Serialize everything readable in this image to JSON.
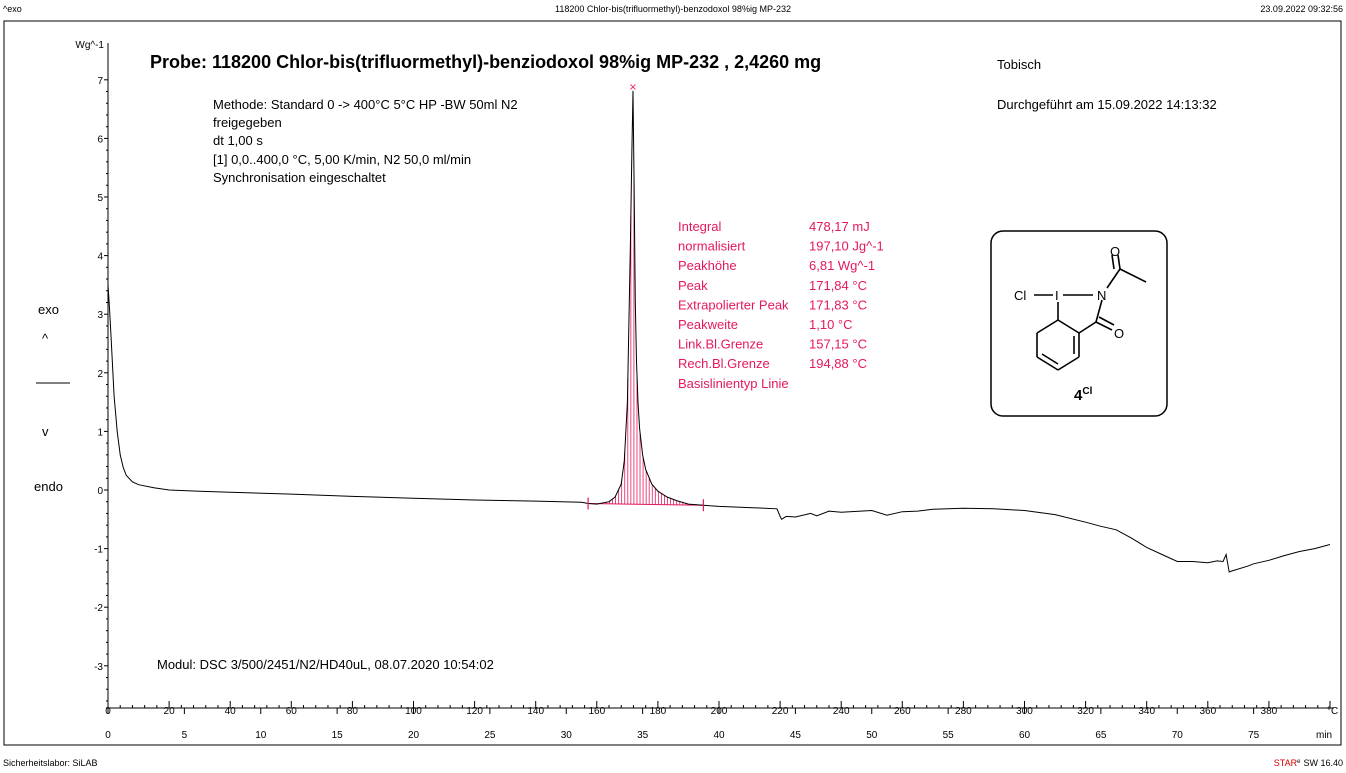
{
  "header": {
    "left": "^exo",
    "center": "118200 Chlor-bis(trifluormethyl)-benzodoxol 98%ig  MP-232",
    "right": "23.09.2022 09:32:56"
  },
  "footer": {
    "left": "Sicherheitslabor: SiLAB",
    "right_star": "STAR",
    "right_reg": "e",
    "right_version": "SW 16.40"
  },
  "probe_title": "Probe: 118200 Chlor-bis(trifluormethyl)-benziodoxol 98%ig  MP-232  , 2,4260 mg",
  "operator": "Tobisch",
  "performed": "Durchgeführt am 15.09.2022 14:13:32",
  "method_lines": [
    "Methode: Standard 0 -> 400°C 5°C HP -BW 50ml N2",
    "freigegeben",
    "dt 1,00 s",
    "[1] 0,0..400,0 °C, 5,00 K/min, N2 50,0 ml/min",
    "Synchronisation eingeschaltet"
  ],
  "modul": "Modul: DSC 3/500/2451/N2/HD40uL, 08.07.2020 10:54:02",
  "direction": {
    "exo": "exo",
    "up": "^",
    "down": "v",
    "endo": "endo"
  },
  "results": [
    {
      "label": "Integral",
      "value": "478,17 mJ"
    },
    {
      "label": "  normalisiert",
      "value": "197,10 Jg^-1"
    },
    {
      "label": "Peakhöhe",
      "value": "6,81 Wg^-1"
    },
    {
      "label": "Peak",
      "value": "171,84 °C"
    },
    {
      "label": "Extrapolierter Peak",
      "value": "171,83 °C"
    },
    {
      "label": "Peakweite",
      "value": "1,10 °C"
    },
    {
      "label": "Link.Bl.Grenze",
      "value": "157,15 °C"
    },
    {
      "label": "Rech.Bl.Grenze",
      "value": "194,88 °C"
    },
    {
      "label": "Basislinientyp  Linie",
      "value": ""
    }
  ],
  "structure": {
    "cl": "Cl",
    "i": "I",
    "n": "N",
    "o_top": "O",
    "o_bottom": "O",
    "compound": "4",
    "compound_sup": "Cl"
  },
  "colors": {
    "curve": "#000000",
    "annotation": "#e4185d"
  },
  "chart_data": {
    "type": "line",
    "ylabel": "Wg^-1",
    "xlabel_temp_unit": "°C",
    "xlabel_time_unit": "min",
    "xlim": [
      0,
      400
    ],
    "ylim": [
      -4,
      7.5
    ],
    "y_ticks": [
      "7",
      "6",
      "5",
      "4",
      "3",
      "2",
      "1",
      "0",
      "-1",
      "-2",
      "-3"
    ],
    "x_temp_ticks": [
      "0",
      "20",
      "40",
      "60",
      "80",
      "100",
      "120",
      "140",
      "160",
      "180",
      "200",
      "220",
      "240",
      "260",
      "280",
      "300",
      "320",
      "340",
      "360",
      "380"
    ],
    "x_time_ticks": [
      "0",
      "5",
      "10",
      "15",
      "20",
      "25",
      "30",
      "35",
      "40",
      "45",
      "50",
      "55",
      "60",
      "65",
      "70",
      "75"
    ],
    "baseline_limits": [
      157.15,
      194.88
    ],
    "peak": {
      "x": 171.84,
      "y": 6.81
    },
    "series": [
      {
        "x": [
          0,
          0.5,
          1,
          1.5,
          2,
          3,
          4,
          5,
          6,
          8,
          10,
          15,
          20,
          30,
          40,
          60,
          80,
          100,
          120,
          140,
          155,
          157.15,
          160,
          164,
          166,
          168,
          169,
          170,
          171,
          171.5,
          171.84,
          172.2,
          172.6,
          173,
          173.5,
          174,
          175,
          176,
          178,
          180,
          183,
          186,
          190,
          194.88,
          197,
          200,
          210,
          219,
          220,
          220.5,
          222,
          225,
          230,
          232,
          236,
          240,
          250,
          255,
          260,
          265,
          270,
          280,
          290,
          300,
          310,
          320,
          325,
          330,
          335,
          340,
          345,
          350,
          355,
          360,
          363,
          365,
          366,
          367,
          368,
          373,
          375,
          380,
          385,
          390,
          395,
          400
        ],
        "y": [
          3.5,
          3.1,
          2.6,
          2.1,
          1.6,
          1.0,
          0.6,
          0.38,
          0.25,
          0.14,
          0.09,
          0.04,
          0.0,
          -0.02,
          -0.04,
          -0.07,
          -0.11,
          -0.14,
          -0.17,
          -0.19,
          -0.21,
          -0.23,
          -0.24,
          -0.2,
          -0.12,
          0.1,
          0.5,
          1.5,
          4.2,
          5.8,
          6.81,
          5.2,
          3.2,
          2.2,
          1.5,
          1.05,
          0.6,
          0.35,
          0.1,
          -0.02,
          -0.12,
          -0.18,
          -0.24,
          -0.26,
          -0.27,
          -0.28,
          -0.3,
          -0.32,
          -0.45,
          -0.5,
          -0.45,
          -0.46,
          -0.4,
          -0.44,
          -0.36,
          -0.38,
          -0.35,
          -0.43,
          -0.37,
          -0.36,
          -0.33,
          -0.31,
          -0.32,
          -0.35,
          -0.42,
          -0.55,
          -0.62,
          -0.68,
          -0.82,
          -0.98,
          -1.1,
          -1.22,
          -1.22,
          -1.24,
          -1.21,
          -1.22,
          -1.1,
          -1.4,
          -1.38,
          -1.3,
          -1.26,
          -1.2,
          -1.12,
          -1.05,
          -1.0,
          -0.93
        ]
      }
    ]
  }
}
